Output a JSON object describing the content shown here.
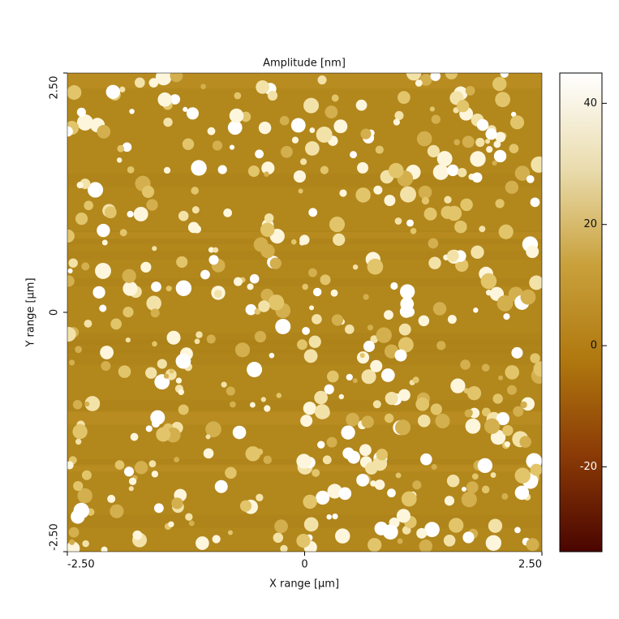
{
  "chart_data": {
    "type": "image",
    "title": "Amplitude [nm]",
    "xlabel": "X range [µm]",
    "ylabel": "Y range [µm]",
    "xlim": [
      -2.5,
      2.5
    ],
    "ylim": [
      -2.5,
      2.5
    ],
    "xticks": [
      {
        "value": -2.5,
        "label": "-2.50"
      },
      0,
      {
        "value": 2.5,
        "label": "2.50"
      }
    ],
    "yticks": [
      {
        "value": -2.5,
        "label": "-2.50"
      },
      0,
      {
        "value": 2.5,
        "label": "2.50"
      }
    ],
    "colorbar": {
      "lim": [
        -34,
        45
      ],
      "ticks": [
        -20,
        0,
        20,
        40
      ],
      "colors": [
        "#4a0500",
        "#8a3a06",
        "#b0780f",
        "#c9a13c",
        "#eadcae",
        "#ffffff"
      ]
    },
    "background": "#b2871c"
  }
}
